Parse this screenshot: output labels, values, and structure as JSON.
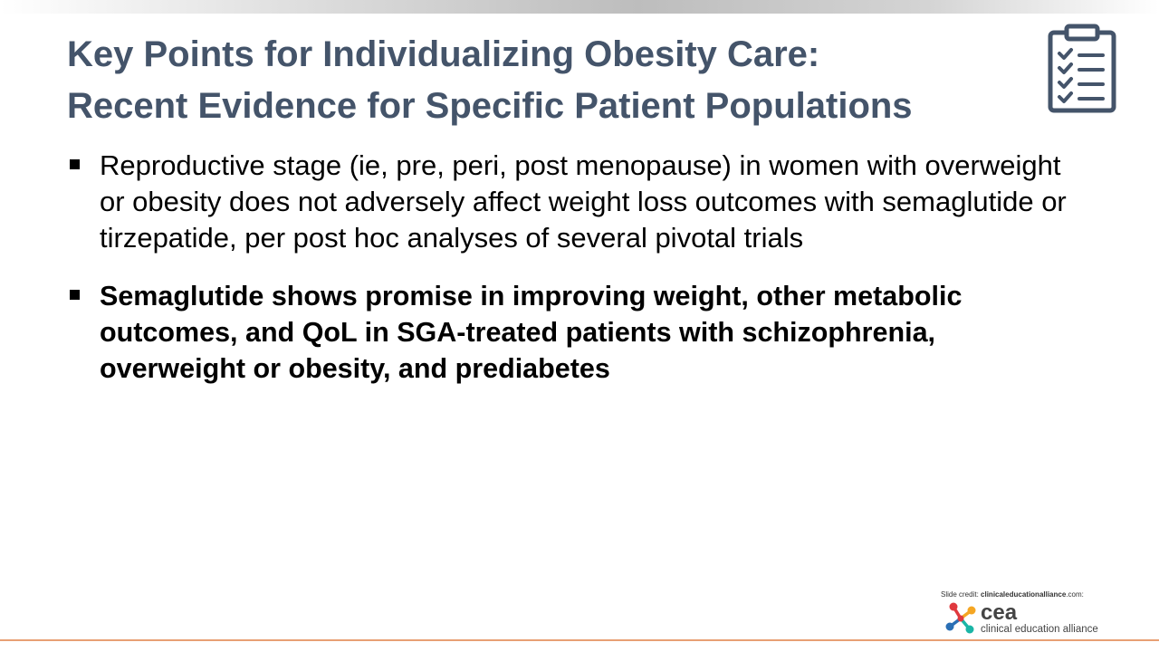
{
  "slide": {
    "title_line1": "Key Points for Individualizing Obesity Care:",
    "title_line2": "Recent Evidence for Specific Patient Populations",
    "bullets": [
      {
        "text": "Reproductive stage (ie, pre, peri, post menopause) in women with overweight or obesity does not adversely affect weight loss outcomes with semaglutide or tirzepatide, per post hoc analyses of several pivotal trials",
        "bold": false
      },
      {
        "text": "Semaglutide shows promise in improving weight, other metabolic outcomes, and QoL in SGA-treated patients with schizophrenia, overweight or obesity, and prediabetes",
        "bold": true
      }
    ]
  },
  "footer": {
    "credit_prefix": "Slide credit: ",
    "credit_site": "clinicaleducationalliance",
    "credit_suffix": ".com:",
    "logo_name": "cea",
    "logo_sub": "clinical education alliance"
  },
  "icons": {
    "checklist": "clipboard-checklist-icon",
    "logo": "cea-logo-mark-icon"
  },
  "colors": {
    "title": "#44546a",
    "body_text": "#000000",
    "accent_line": "#e8a074",
    "logo_red": "#e0393e",
    "logo_orange": "#f5a623",
    "logo_teal": "#1ab5a6",
    "logo_blue": "#2a6fb5"
  }
}
